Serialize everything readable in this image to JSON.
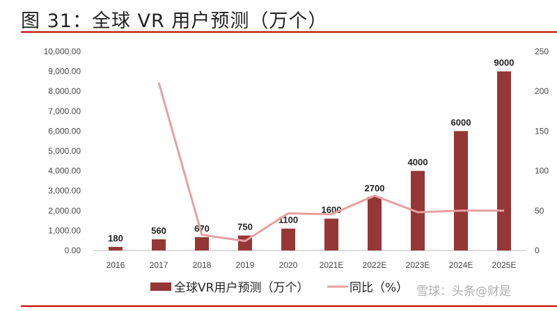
{
  "title": "图 31：全球 VR 用户预测（万个）",
  "chart_data": {
    "type": "bar+line",
    "categories": [
      "2016",
      "2017",
      "2018",
      "2019",
      "2020",
      "2021E",
      "2022E",
      "2023E",
      "2024E",
      "2025E"
    ],
    "series": [
      {
        "name": "全球VR用户预测（万个）",
        "type": "bar",
        "axis": "left",
        "color": "#953735",
        "values": [
          180,
          560,
          670,
          750,
          1100,
          1600,
          2700,
          4000,
          6000,
          9000
        ]
      },
      {
        "name": "同比（%）",
        "type": "line",
        "axis": "right",
        "color": "#e6a0a0",
        "values": [
          null,
          211.1,
          19.6,
          11.9,
          46.7,
          45.5,
          68.8,
          48.1,
          50,
          50
        ]
      }
    ],
    "left_axis": {
      "ylim": [
        0,
        10000
      ],
      "ticks": [
        "0.00",
        "1,000.00",
        "2,000.00",
        "3,000.00",
        "4,000.00",
        "5,000.00",
        "6,000.00",
        "7,000.00",
        "8,000.00",
        "9,000.00",
        "10,000.00"
      ]
    },
    "right_axis": {
      "ylim": [
        0,
        250
      ],
      "ticks": [
        "0",
        "50",
        "100",
        "150",
        "200",
        "250"
      ]
    },
    "data_labels": [
      "180",
      "560",
      "670",
      "750",
      "1100",
      "1600",
      "2700",
      "4000",
      "6000",
      "9000"
    ],
    "legend": "bottom",
    "grid": false
  },
  "watermark": "雪球：头条@财是"
}
